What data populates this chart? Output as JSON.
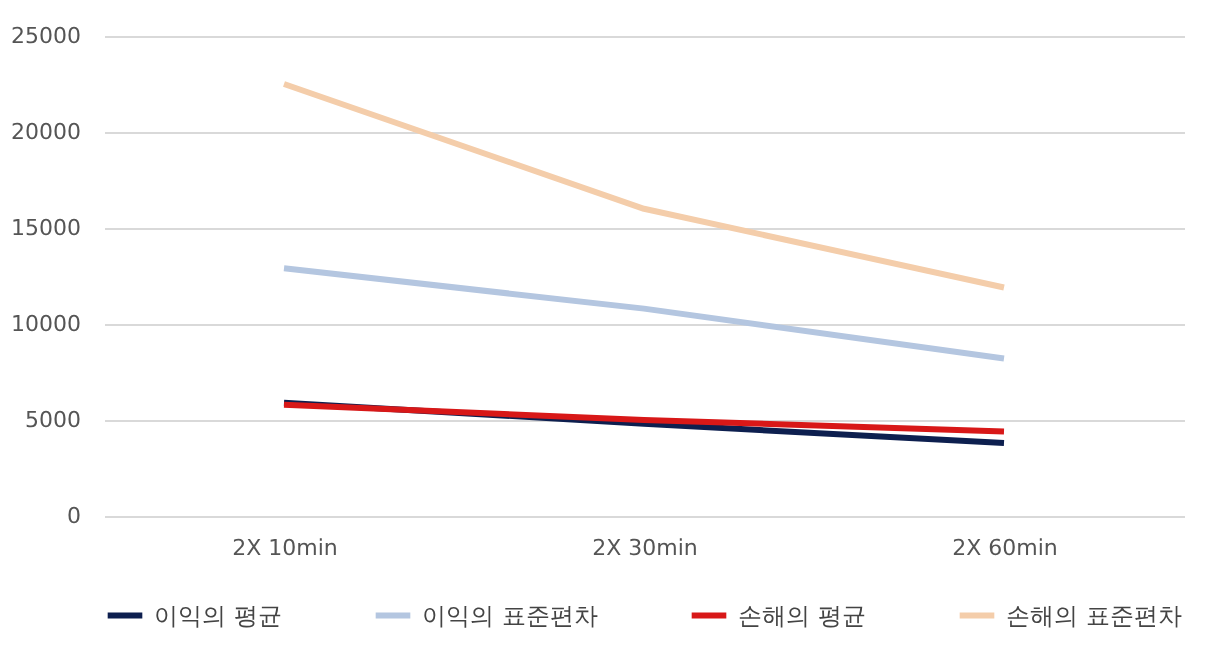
{
  "chart_data": {
    "type": "line",
    "categories": [
      "2X 10min",
      "2X 30min",
      "2X 60min"
    ],
    "series": [
      {
        "name": "이익의 평균",
        "color": "#0d1f4f",
        "values": [
          5900,
          4800,
          3800
        ]
      },
      {
        "name": "이익의 표준편차",
        "color": "#b4c6e0",
        "values": [
          12900,
          10800,
          8200
        ]
      },
      {
        "name": "손해의 평균",
        "color": "#d81818",
        "values": [
          5800,
          5000,
          4400
        ]
      },
      {
        "name": "손해의 표준편차",
        "color": "#f4cdaa",
        "values": [
          22500,
          16000,
          11900
        ]
      }
    ],
    "ylim": [
      0,
      25000
    ],
    "yticks": [
      0,
      5000,
      10000,
      15000,
      20000,
      25000
    ],
    "grid": "y",
    "legend": "bottom",
    "marker": "none",
    "line_style": "solid"
  }
}
